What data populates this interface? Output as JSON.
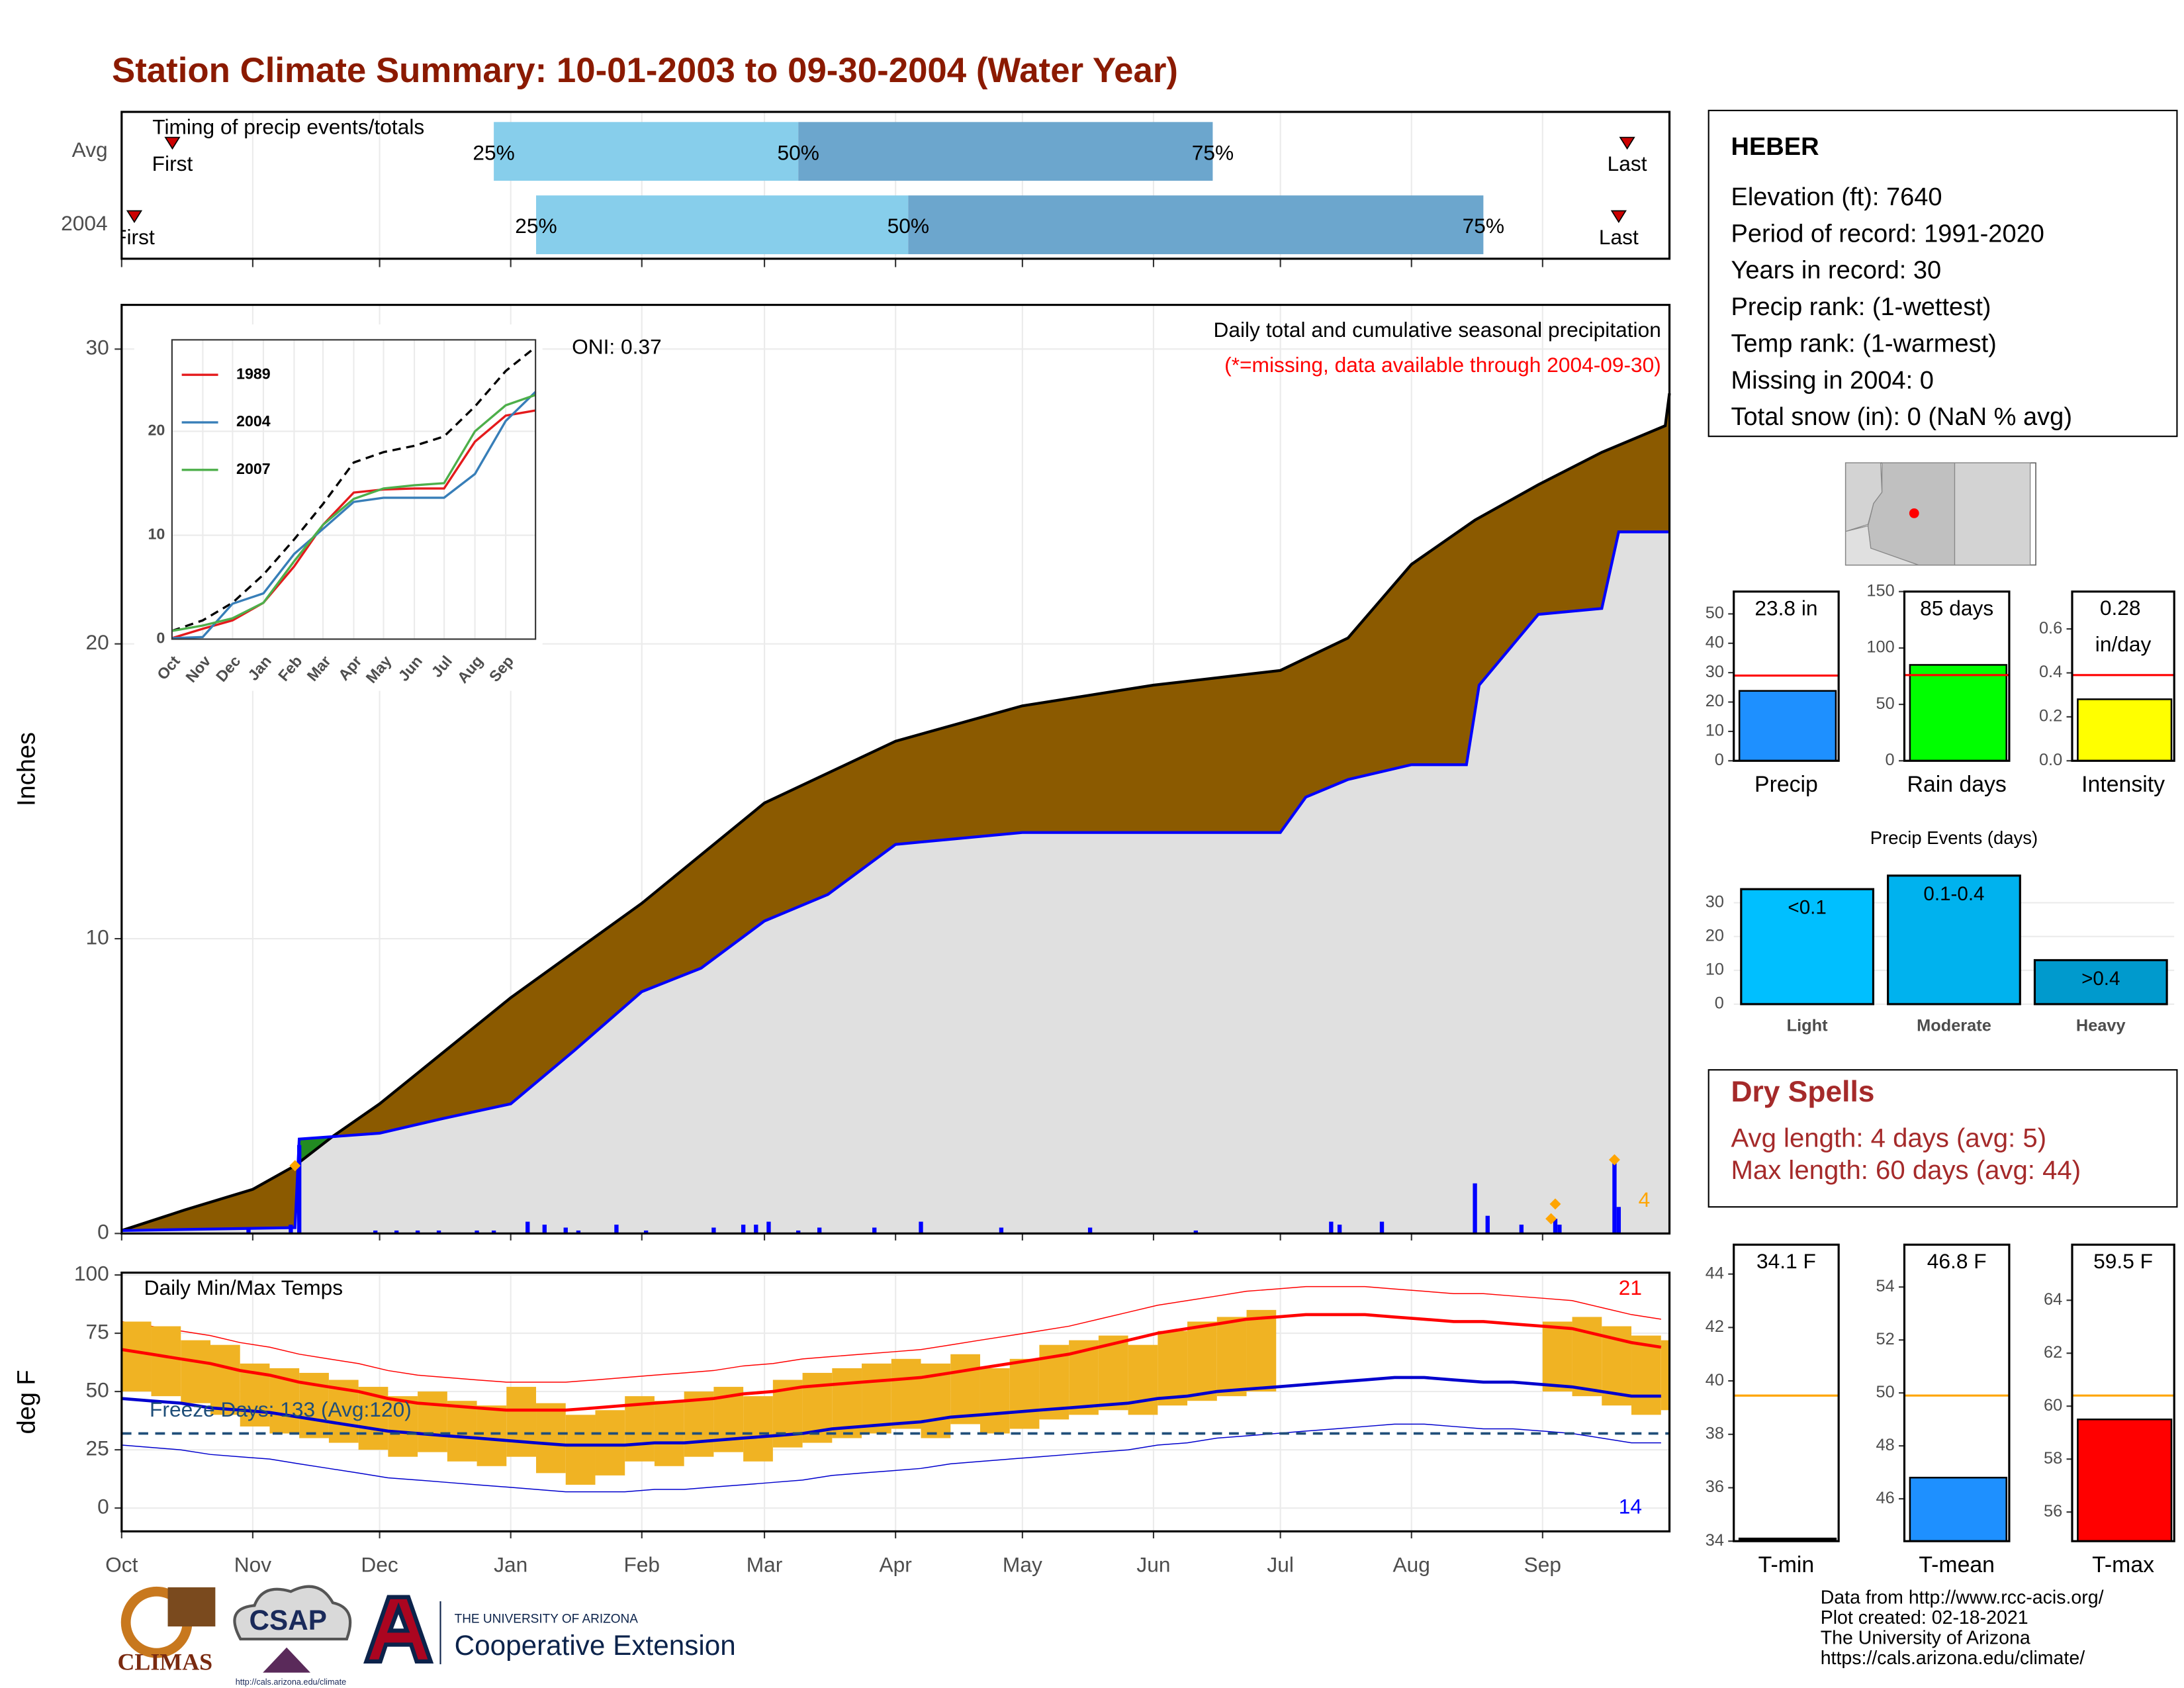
{
  "title": "Station Climate Summary: 10-01-2003 to 09-30-2004 (Water Year)",
  "station": {
    "name": "HEBER",
    "lines": [
      "Elevation (ft): 7640",
      "Period of record: 1991-2020",
      "Years in record: 30",
      "Precip rank:  (1-wettest)",
      "Temp rank:  (1-warmest)",
      "Missing in 2004: 0",
      "Total snow (in): 0 (NaN % avg)"
    ]
  },
  "dry_spells": {
    "title": "Dry Spells",
    "lines": [
      "Avg length: 4 days (avg: 5)",
      "Max length: 60 days (avg: 44)"
    ]
  },
  "footer": {
    "lines": [
      "Data from http://www.rcc-acis.org/",
      "Plot created: 02-18-2021",
      "The University of Arizona",
      "https://cals.arizona.edu/climate/"
    ]
  },
  "logos": {
    "climas": "CLIMAS",
    "csap": "CSAP",
    "csap_url": "http://cals.arizona.edu/climate",
    "university": "THE UNIVERSITY OF ARIZONA",
    "extension": "Cooperative Extension"
  },
  "chart_data": [
    {
      "type": "timeline",
      "title": "Timing of precip events/totals",
      "xlim": [
        0,
        366
      ],
      "xticks": [
        0,
        31,
        61,
        92,
        123,
        152,
        183,
        213,
        244,
        274,
        305,
        336
      ],
      "grid": true,
      "rows": [
        {
          "name": "Avg",
          "first": 12,
          "q25": 88,
          "q50": 160,
          "q75": 258,
          "last": 356
        },
        {
          "name": "2004",
          "first": 3,
          "q25": 98,
          "q50": 186,
          "q75": 322,
          "last": 354
        }
      ],
      "labels": {
        "first": "First",
        "last": "Last",
        "q25": "25%",
        "q50": "50%",
        "q75": "75%"
      },
      "colors": {
        "early": "#87ceeb",
        "late": "#6ca6cd",
        "marker": "#cc0000"
      }
    },
    {
      "type": "cumulative",
      "title": "Daily total and cumulative seasonal precipitation",
      "subtitle": "(*=missing, data available through 2004-09-30)",
      "ylabel": "Inches",
      "annotation": "ONI: 0.37",
      "xlim": [
        0,
        366
      ],
      "xticks": [
        0,
        31,
        61,
        92,
        123,
        152,
        183,
        213,
        244,
        274,
        305,
        336
      ],
      "ylim": [
        0,
        31.5
      ],
      "yticks": [
        0,
        10,
        20,
        30
      ],
      "grid": true,
      "average": {
        "x": [
          0,
          15,
          31,
          41,
          50,
          61,
          92,
          123,
          152,
          183,
          213,
          244,
          274,
          290,
          305,
          320,
          335,
          350,
          365,
          366
        ],
        "values": [
          0.1,
          0.8,
          1.5,
          2.3,
          3.3,
          4.4,
          8.0,
          11.2,
          14.6,
          16.7,
          17.9,
          18.6,
          19.1,
          20.2,
          22.7,
          24.2,
          25.4,
          26.5,
          27.4,
          28.5
        ],
        "color": "#8b5a00"
      },
      "observed": {
        "x": [
          0,
          41,
          42,
          61,
          76,
          92,
          107,
          123,
          137,
          152,
          167,
          183,
          213,
          244,
          274,
          280,
          290,
          305,
          318,
          321,
          335,
          350,
          354,
          366
        ],
        "values": [
          0.1,
          0.2,
          3.2,
          3.4,
          3.9,
          4.4,
          6.2,
          8.2,
          9.0,
          10.6,
          11.5,
          13.2,
          13.6,
          13.6,
          13.6,
          14.8,
          15.4,
          15.9,
          15.9,
          18.6,
          21.0,
          21.2,
          23.8,
          23.8
        ],
        "color": "#0000ff",
        "fill": "#e0e0e0"
      },
      "above_color": "#228b22",
      "daily": {
        "x": [
          30,
          40,
          42,
          60,
          65,
          70,
          75,
          84,
          88,
          96,
          100,
          105,
          108,
          117,
          124,
          140,
          147,
          150,
          153,
          160,
          165,
          178,
          189,
          208,
          229,
          254,
          286,
          288,
          298,
          320,
          323,
          331,
          339,
          340,
          353,
          354
        ],
        "values": [
          0.2,
          0.3,
          3.0,
          0.1,
          0.1,
          0.1,
          0.1,
          0.1,
          0.1,
          0.4,
          0.3,
          0.2,
          0.1,
          0.3,
          0.1,
          0.2,
          0.3,
          0.3,
          0.4,
          0.1,
          0.2,
          0.2,
          0.4,
          0.2,
          0.2,
          0.1,
          0.4,
          0.3,
          0.4,
          1.7,
          0.6,
          0.3,
          0.5,
          0.3,
          2.4,
          0.9
        ],
        "color": "#0000ff"
      },
      "markers": {
        "x": [
          41,
          338,
          339,
          353
        ],
        "values": [
          2.3,
          0.5,
          1.0,
          2.5
        ],
        "color": "#ffa500"
      },
      "marker_count": 4
    },
    {
      "type": "line",
      "xlim": [
        0,
        366
      ],
      "xticks": [
        {
          "value": 0,
          "label": "Oct"
        },
        {
          "value": 31,
          "label": "Nov"
        },
        {
          "value": 61,
          "label": "Dec"
        },
        {
          "value": 92,
          "label": "Jan"
        },
        {
          "value": 123,
          "label": "Feb"
        },
        {
          "value": 152,
          "label": "Mar"
        },
        {
          "value": 183,
          "label": "Apr"
        },
        {
          "value": 213,
          "label": "May"
        },
        {
          "value": 244,
          "label": "Jun"
        },
        {
          "value": 274,
          "label": "Jul"
        },
        {
          "value": 305,
          "label": "Aug"
        },
        {
          "value": 336,
          "label": "Sep"
        }
      ],
      "ylim": [
        0,
        28.8
      ],
      "yticks": [
        0,
        10,
        20
      ],
      "grid": true,
      "legend": "top-left",
      "x": [
        0,
        31,
        61,
        92,
        123,
        152,
        183,
        213,
        244,
        274,
        305,
        336,
        366
      ],
      "series": [
        {
          "color": "#000000",
          "dashed": true,
          "values": [
            0.8,
            1.8,
            3.5,
            6.2,
            9.6,
            13.0,
            17.0,
            18.0,
            18.6,
            19.5,
            22.4,
            25.8,
            28.1
          ]
        },
        {
          "name": "1989",
          "color": "#e41a1c",
          "values": [
            0.1,
            1.0,
            1.8,
            3.5,
            7.0,
            11.0,
            14.1,
            14.4,
            14.5,
            14.5,
            19.0,
            21.5,
            22.0
          ]
        },
        {
          "name": "2004",
          "color": "#377eb8",
          "values": [
            0.1,
            0.2,
            3.4,
            4.4,
            8.2,
            10.6,
            13.2,
            13.6,
            13.6,
            13.6,
            15.9,
            21.0,
            23.8
          ]
        },
        {
          "name": "2007",
          "color": "#4daf4a",
          "values": [
            0.8,
            1.3,
            2.0,
            3.5,
            7.5,
            11.0,
            13.5,
            14.5,
            14.8,
            15.0,
            20.0,
            22.5,
            23.5
          ]
        }
      ]
    },
    {
      "type": "range",
      "title": "Daily Min/Max Temps",
      "ylabel": "deg F",
      "annotation": "Freeze Days: 133 (Avg:120)",
      "xlim": [
        0,
        366
      ],
      "xticks": [
        {
          "value": 0,
          "label": "Oct"
        },
        {
          "value": 31,
          "label": "Nov"
        },
        {
          "value": 61,
          "label": "Dec"
        },
        {
          "value": 92,
          "label": "Jan"
        },
        {
          "value": 123,
          "label": "Feb"
        },
        {
          "value": 152,
          "label": "Mar"
        },
        {
          "value": 183,
          "label": "Apr"
        },
        {
          "value": 213,
          "label": "May"
        },
        {
          "value": 244,
          "label": "Jun"
        },
        {
          "value": 274,
          "label": "Jul"
        },
        {
          "value": 305,
          "label": "Aug"
        },
        {
          "value": 336,
          "label": "Sep"
        }
      ],
      "ylim": [
        -10,
        101
      ],
      "yticks": [
        0,
        25,
        50,
        75,
        100
      ],
      "grid": true,
      "x": [
        0,
        7,
        14,
        21,
        28,
        35,
        42,
        49,
        56,
        63,
        70,
        77,
        84,
        91,
        98,
        105,
        112,
        119,
        126,
        133,
        140,
        147,
        154,
        161,
        168,
        175,
        182,
        189,
        196,
        203,
        210,
        217,
        224,
        231,
        238,
        245,
        252,
        259,
        266,
        273,
        280,
        287,
        294,
        301,
        308,
        315,
        322,
        329,
        336,
        343,
        350,
        357,
        364
      ],
      "observed_max": [
        80,
        78,
        72,
        70,
        62,
        60,
        58,
        55,
        52,
        48,
        50,
        46,
        44,
        52,
        45,
        40,
        42,
        48,
        46,
        50,
        52,
        48,
        55,
        58,
        60,
        62,
        64,
        62,
        66,
        60,
        64,
        70,
        72,
        74,
        70,
        76,
        80,
        82,
        85,
        null,
        null,
        null,
        null,
        null,
        null,
        null,
        null,
        null,
        80,
        82,
        78,
        74,
        72
      ],
      "observed_min": [
        50,
        48,
        45,
        40,
        35,
        32,
        30,
        28,
        25,
        22,
        24,
        20,
        18,
        22,
        15,
        10,
        14,
        20,
        18,
        22,
        24,
        20,
        26,
        28,
        30,
        32,
        34,
        30,
        36,
        32,
        34,
        38,
        40,
        42,
        40,
        44,
        46,
        48,
        50,
        null,
        null,
        null,
        null,
        null,
        null,
        null,
        null,
        null,
        50,
        48,
        44,
        40,
        42
      ],
      "normal_max": [
        68,
        66,
        64,
        62,
        59,
        57,
        54,
        52,
        50,
        47,
        45,
        44,
        43,
        42,
        42,
        42,
        43,
        44,
        45,
        46,
        47,
        49,
        50,
        52,
        53,
        54,
        55,
        56,
        58,
        60,
        62,
        64,
        66,
        69,
        72,
        75,
        77,
        79,
        81,
        82,
        83,
        83,
        83,
        82,
        81,
        80,
        80,
        79,
        78,
        77,
        74,
        71,
        69
      ],
      "normal_min": [
        47,
        46,
        45,
        43,
        42,
        41,
        39,
        37,
        35,
        33,
        32,
        31,
        30,
        29,
        28,
        27,
        27,
        27,
        28,
        28,
        29,
        30,
        31,
        32,
        34,
        35,
        36,
        37,
        39,
        40,
        41,
        42,
        43,
        44,
        45,
        47,
        48,
        50,
        51,
        52,
        53,
        54,
        55,
        56,
        56,
        55,
        54,
        54,
        53,
        52,
        50,
        48,
        48
      ],
      "record_max": [
        80,
        78,
        76,
        74,
        71,
        69,
        66,
        64,
        62,
        59,
        57,
        56,
        55,
        54,
        54,
        54,
        55,
        56,
        57,
        58,
        59,
        61,
        62,
        64,
        65,
        66,
        67,
        68,
        70,
        72,
        74,
        76,
        78,
        81,
        84,
        87,
        89,
        91,
        93,
        94,
        95,
        95,
        95,
        94,
        93,
        92,
        92,
        91,
        90,
        89,
        86,
        83,
        81
      ],
      "record_min": [
        27,
        26,
        25,
        23,
        22,
        21,
        19,
        17,
        15,
        13,
        12,
        11,
        10,
        9,
        8,
        7,
        7,
        7,
        8,
        8,
        9,
        10,
        11,
        12,
        14,
        15,
        16,
        17,
        19,
        20,
        21,
        22,
        23,
        24,
        25,
        27,
        28,
        30,
        31,
        32,
        33,
        34,
        35,
        36,
        36,
        35,
        34,
        34,
        33,
        32,
        30,
        28,
        28
      ],
      "freeze_line": 32,
      "record_high_count": 21,
      "record_low_count": 14,
      "colors": {
        "observed": "#f0b323",
        "max": "#ff0000",
        "min": "#0000cd",
        "freeze": "#1f4e79"
      }
    },
    {
      "type": "bar",
      "categories": [
        "Precip"
      ],
      "values": [
        23.8
      ],
      "value_labels": [
        "23.8 in"
      ],
      "ylim": [
        0,
        57.6
      ],
      "yticks": [
        0,
        10,
        20,
        30,
        40,
        50
      ],
      "reference": 29,
      "reference_color": "#ff0000",
      "color": "#1e90ff"
    },
    {
      "type": "bar",
      "categories": [
        "Rain days"
      ],
      "values": [
        85
      ],
      "value_labels": [
        "85 days"
      ],
      "ylim": [
        0,
        150
      ],
      "yticks": [
        0,
        50,
        100,
        150
      ],
      "reference": 76,
      "reference_color": "#ff0000",
      "color": "#00ff00"
    },
    {
      "type": "bar",
      "categories": [
        "Intensity"
      ],
      "values": [
        0.28
      ],
      "value_labels": [
        "0.28 in/day"
      ],
      "ylim": [
        0,
        0.77
      ],
      "yticks": [
        {
          "value": 0,
          "label": "0.0"
        },
        0.2,
        0.4,
        0.6
      ],
      "reference": 0.39,
      "reference_color": "#ff0000",
      "color": "#ffff00"
    },
    {
      "type": "events",
      "title": "Precip Events (days)",
      "categories": [
        "Light",
        "Moderate",
        "Heavy"
      ],
      "values": [
        34,
        38,
        13
      ],
      "bin_labels": [
        "<0.1",
        "0.1-0.4",
        ">0.4"
      ],
      "colors": [
        "#00bfff",
        "#00b2ee",
        "#009acd"
      ],
      "ylim": [
        0,
        39.7
      ],
      "yticks": [
        0,
        10,
        20,
        30
      ],
      "grid": true
    },
    {
      "type": "bar",
      "categories": [
        "T-min"
      ],
      "values": [
        34.1
      ],
      "value_labels": [
        "34.1 F"
      ],
      "ylim": [
        34,
        45.1
      ],
      "yticks": [
        34,
        36,
        38,
        40,
        42,
        44
      ],
      "reference": 39.45,
      "reference_color": "#ffa500",
      "color": "#000000"
    },
    {
      "type": "bar",
      "categories": [
        "T-mean"
      ],
      "values": [
        46.8
      ],
      "value_labels": [
        "46.8 F"
      ],
      "ylim": [
        44.4,
        55.6
      ],
      "yticks": [
        46,
        48,
        50,
        52,
        54
      ],
      "reference": 49.9,
      "reference_color": "#ffa500",
      "color": "#1e90ff"
    },
    {
      "type": "bar",
      "categories": [
        "T-max"
      ],
      "values": [
        59.5
      ],
      "value_labels": [
        "59.5 F"
      ],
      "ylim": [
        54.9,
        66.1
      ],
      "yticks": [
        56,
        58,
        60,
        62,
        64
      ],
      "reference": 60.4,
      "reference_color": "#ffa500",
      "color": "#ff0000"
    }
  ]
}
